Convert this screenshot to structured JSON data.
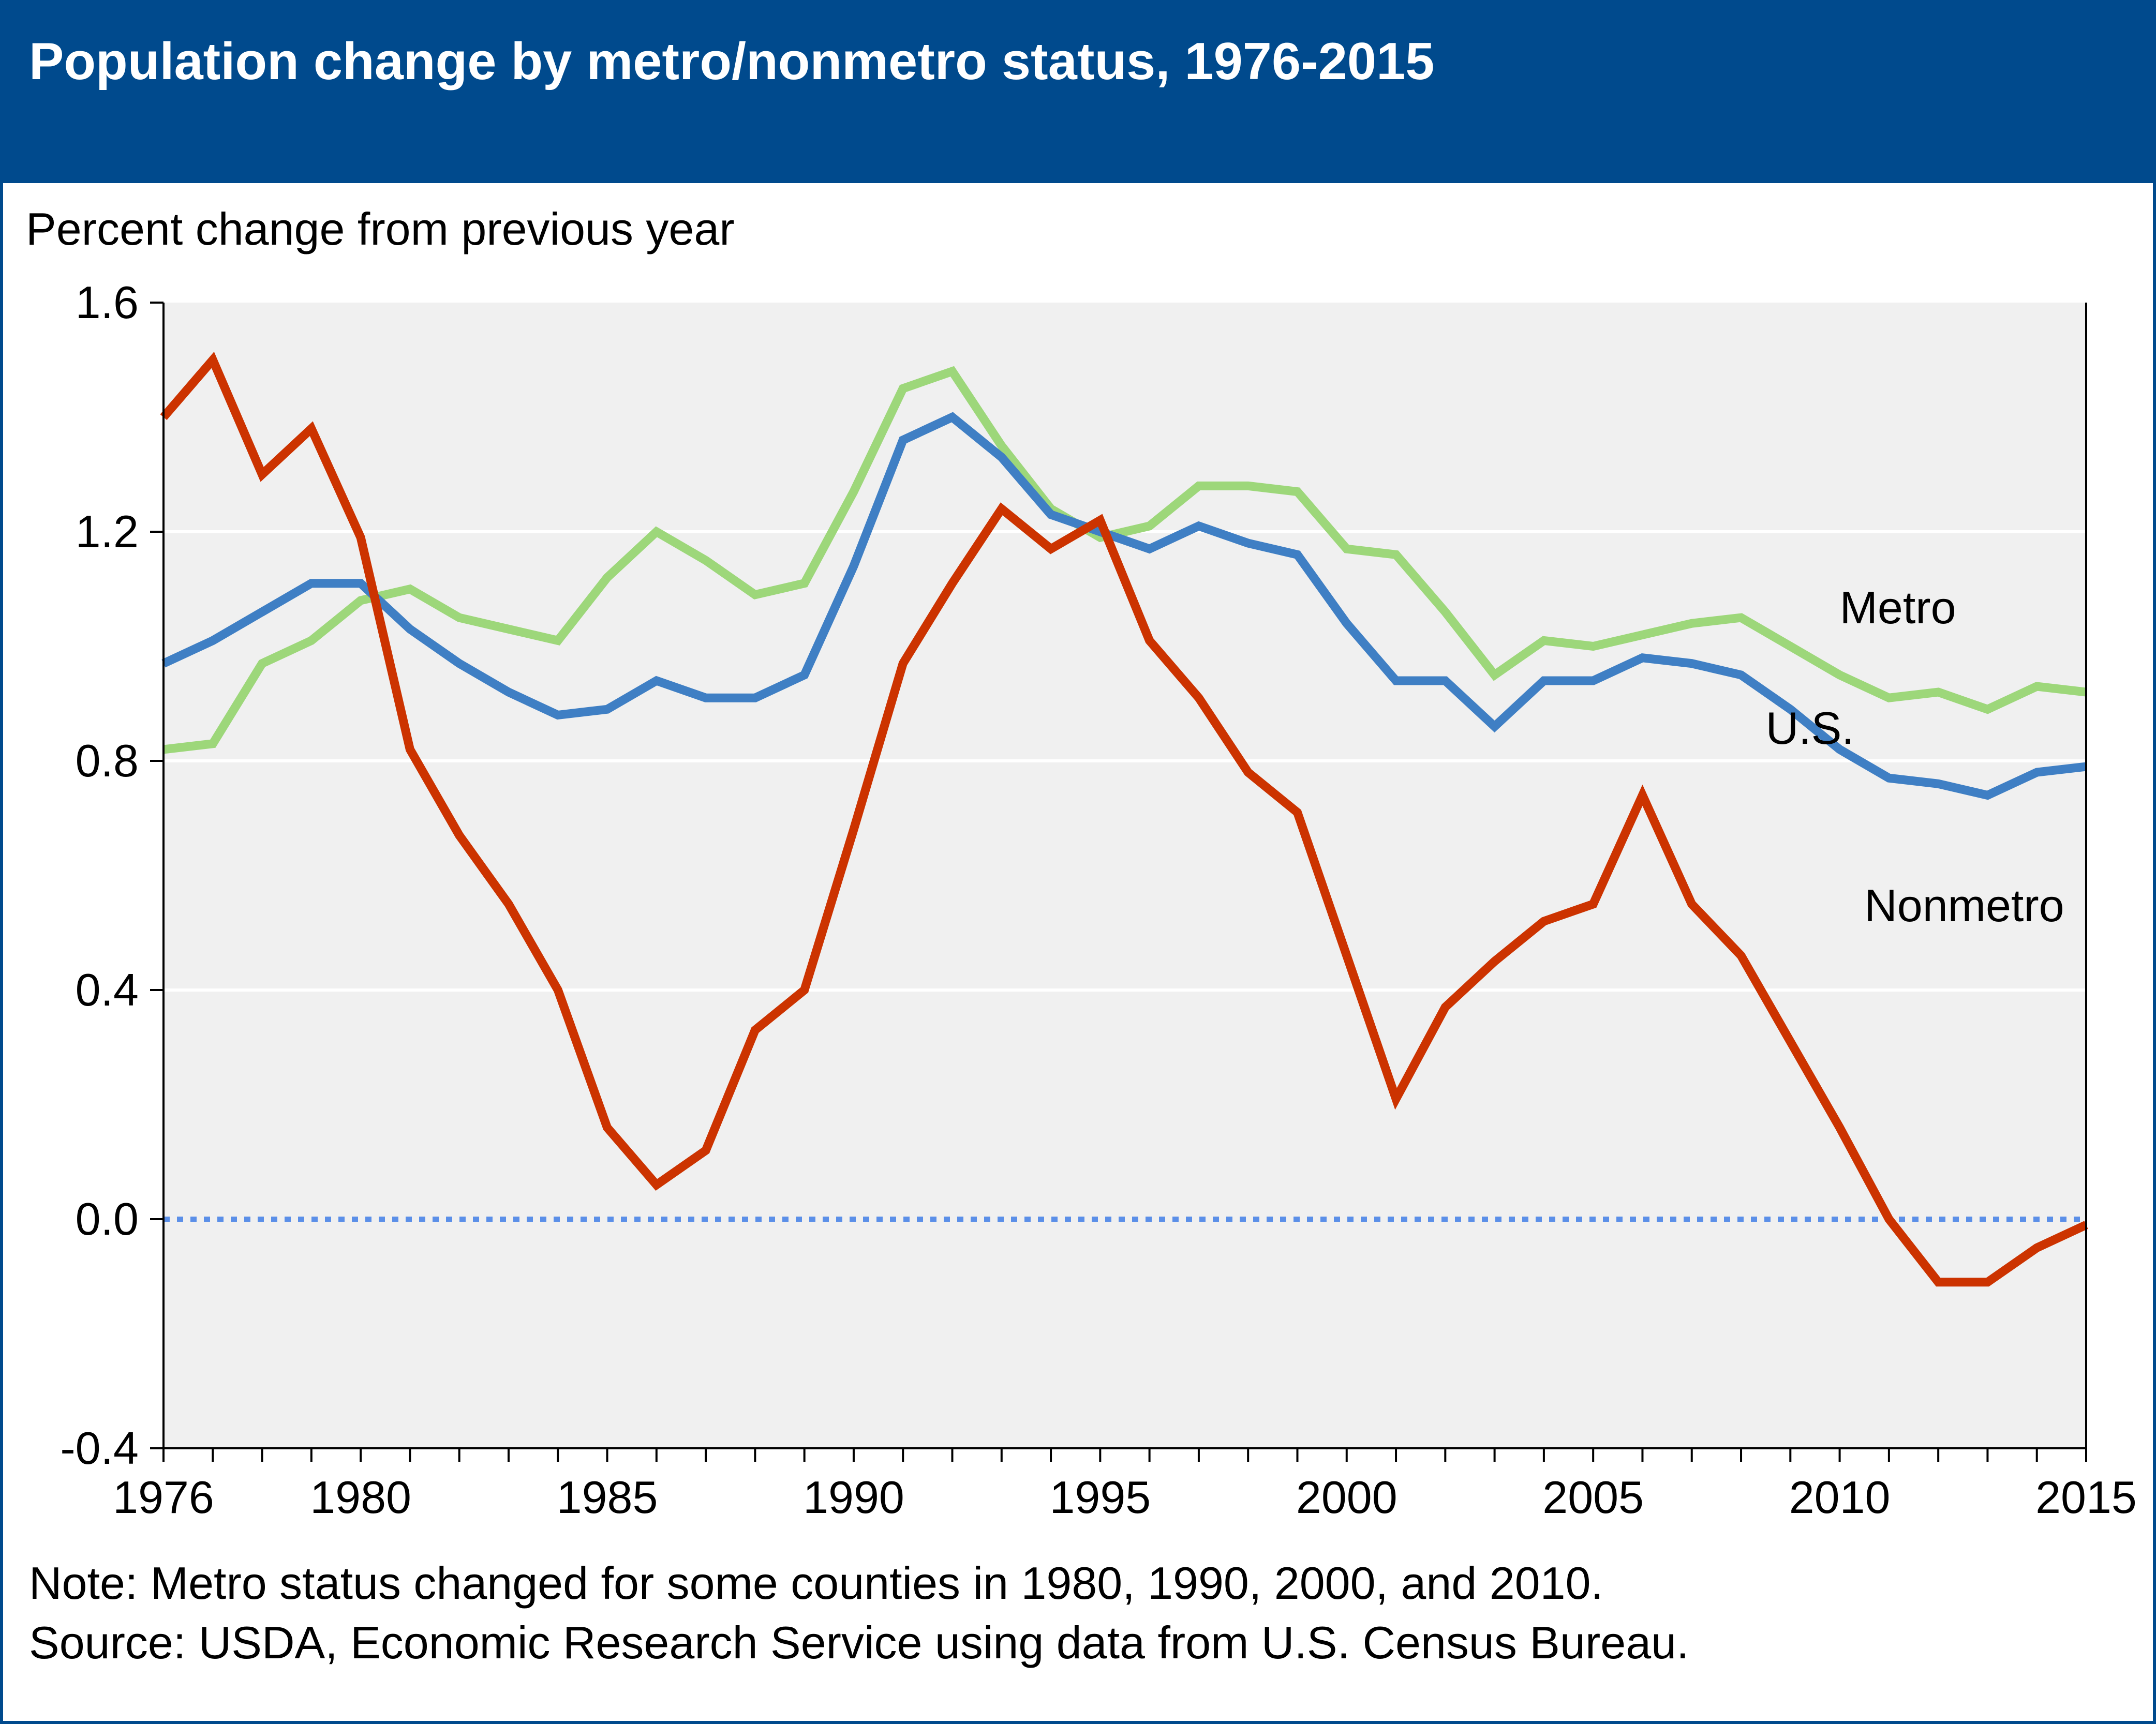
{
  "header": {
    "title": "Population change by metro/nonmetro status, 1976-2015"
  },
  "footer": {
    "note": "Note: Metro status changed for some counties in 1980, 1990, 2000, and 2010.",
    "source": "Source: USDA, Economic Research Service using data from U.S. Census Bureau."
  },
  "colors": {
    "header_bg": "#004a8d",
    "plot_bg": "#f0f0f0",
    "metro": "#9dd77a",
    "us": "#3f7fc4",
    "nonmetro": "#cc3300",
    "zero_line": "#5b8fe8"
  },
  "chart_data": {
    "type": "line",
    "title": "Population change by metro/nonmetro status, 1976-2015",
    "xlabel": "",
    "ylabel": "Percent change from previous year",
    "xlim": [
      1976,
      2015
    ],
    "ylim": [
      -0.4,
      1.6
    ],
    "yticks": [
      -0.4,
      0.0,
      0.4,
      0.8,
      1.2,
      1.6
    ],
    "ytick_labels": [
      "-0.4",
      "0.0",
      "0.4",
      "0.8",
      "1.2",
      "1.6"
    ],
    "xtick_labels": [
      "1976",
      "1980",
      "1985",
      "1990",
      "1995",
      "2000",
      "2005",
      "2010",
      "2015"
    ],
    "xticks": [
      1976,
      1980,
      1985,
      1990,
      1995,
      2000,
      2005,
      2010,
      2015
    ],
    "grid": "horizontal",
    "reference_line": 0.0,
    "x": [
      1976,
      1977,
      1978,
      1979,
      1980,
      1981,
      1982,
      1983,
      1984,
      1985,
      1986,
      1987,
      1988,
      1989,
      1990,
      1991,
      1992,
      1993,
      1994,
      1995,
      1996,
      1997,
      1998,
      1999,
      2000,
      2001,
      2002,
      2003,
      2004,
      2005,
      2006,
      2007,
      2008,
      2009,
      2010,
      2011,
      2012,
      2013,
      2014,
      2015
    ],
    "series": [
      {
        "name": "Metro",
        "label": "Metro",
        "color_key": "metro",
        "label_at": [
          2010,
          1.04
        ],
        "values": [
          0.82,
          0.83,
          0.97,
          1.01,
          1.08,
          1.1,
          1.05,
          1.03,
          1.01,
          1.12,
          1.2,
          1.15,
          1.09,
          1.11,
          1.27,
          1.45,
          1.48,
          1.35,
          1.24,
          1.19,
          1.21,
          1.28,
          1.28,
          1.27,
          1.17,
          1.16,
          1.06,
          0.95,
          1.01,
          1.0,
          1.02,
          1.04,
          1.05,
          1.0,
          0.95,
          0.91,
          0.92,
          0.89,
          0.93,
          0.92
        ]
      },
      {
        "name": "U.S.",
        "label": "U.S.",
        "color_key": "us",
        "label_at": [
          2008.5,
          0.83
        ],
        "values": [
          0.97,
          1.01,
          1.06,
          1.11,
          1.11,
          1.03,
          0.97,
          0.92,
          0.88,
          0.89,
          0.94,
          0.91,
          0.91,
          0.95,
          1.14,
          1.36,
          1.4,
          1.33,
          1.23,
          1.2,
          1.17,
          1.21,
          1.18,
          1.16,
          1.04,
          0.94,
          0.94,
          0.86,
          0.94,
          0.94,
          0.98,
          0.97,
          0.95,
          0.89,
          0.82,
          0.77,
          0.76,
          0.74,
          0.78,
          0.79
        ]
      },
      {
        "name": "Nonmetro",
        "label": "Nonmetro",
        "color_key": "nonmetro",
        "label_at": [
          2010.5,
          0.52
        ],
        "values": [
          1.4,
          1.5,
          1.3,
          1.38,
          1.19,
          0.82,
          0.67,
          0.55,
          0.4,
          0.16,
          0.06,
          0.12,
          0.33,
          0.4,
          0.68,
          0.97,
          1.11,
          1.24,
          1.17,
          1.22,
          1.01,
          0.91,
          0.78,
          0.71,
          0.46,
          0.21,
          0.37,
          0.45,
          0.52,
          0.55,
          0.74,
          0.55,
          0.46,
          0.31,
          0.16,
          0.0,
          -0.11,
          -0.11,
          -0.05,
          -0.01
        ]
      }
    ]
  }
}
